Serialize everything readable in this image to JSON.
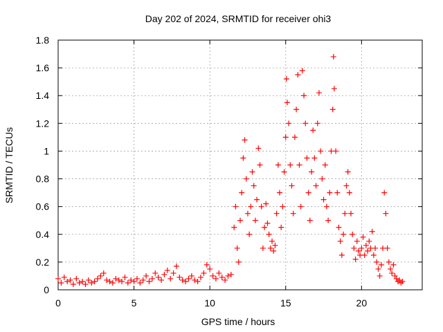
{
  "chart_data": {
    "type": "scatter",
    "title": "Day 202 of 2024, SRMTID for receiver ohi3",
    "xlabel": "GPS time / hours",
    "ylabel": "SRMTID / TECUs",
    "xlim": [
      0,
      24
    ],
    "ylim": [
      0,
      1.8
    ],
    "x_ticks": [
      0,
      5,
      10,
      15,
      20
    ],
    "x_tick_labels": [
      "0",
      "5",
      "10",
      "15",
      "20"
    ],
    "y_ticks": [
      0,
      0.2,
      0.4,
      0.6,
      0.8,
      1.0,
      1.2,
      1.4,
      1.6,
      1.8
    ],
    "y_tick_labels": [
      "0",
      "0.2",
      "0.4",
      "0.6",
      "0.8",
      "1",
      "1.2",
      "1.4",
      "1.6",
      "1.8"
    ],
    "grid": true,
    "marker": "+",
    "series": [
      {
        "name": "SRMTID",
        "color": "#ff0000",
        "points": [
          [
            0.0,
            0.08
          ],
          [
            0.2,
            0.05
          ],
          [
            0.4,
            0.09
          ],
          [
            0.6,
            0.06
          ],
          [
            0.8,
            0.07
          ],
          [
            1.0,
            0.04
          ],
          [
            1.2,
            0.08
          ],
          [
            1.4,
            0.05
          ],
          [
            1.6,
            0.06
          ],
          [
            1.8,
            0.04
          ],
          [
            2.0,
            0.07
          ],
          [
            2.2,
            0.05
          ],
          [
            2.4,
            0.06
          ],
          [
            2.6,
            0.08
          ],
          [
            2.8,
            0.1
          ],
          [
            3.0,
            0.12
          ],
          [
            3.2,
            0.07
          ],
          [
            3.4,
            0.06
          ],
          [
            3.6,
            0.05
          ],
          [
            3.8,
            0.08
          ],
          [
            4.0,
            0.07
          ],
          [
            4.2,
            0.06
          ],
          [
            4.4,
            0.09
          ],
          [
            4.6,
            0.05
          ],
          [
            4.8,
            0.07
          ],
          [
            5.0,
            0.06
          ],
          [
            5.2,
            0.08
          ],
          [
            5.4,
            0.05
          ],
          [
            5.6,
            0.07
          ],
          [
            5.8,
            0.1
          ],
          [
            6.0,
            0.06
          ],
          [
            6.2,
            0.08
          ],
          [
            6.4,
            0.12
          ],
          [
            6.6,
            0.09
          ],
          [
            6.8,
            0.07
          ],
          [
            7.0,
            0.11
          ],
          [
            7.2,
            0.14
          ],
          [
            7.4,
            0.08
          ],
          [
            7.6,
            0.12
          ],
          [
            7.8,
            0.17
          ],
          [
            8.0,
            0.09
          ],
          [
            8.2,
            0.07
          ],
          [
            8.4,
            0.06
          ],
          [
            8.6,
            0.08
          ],
          [
            8.8,
            0.1
          ],
          [
            9.0,
            0.07
          ],
          [
            9.2,
            0.06
          ],
          [
            9.4,
            0.09
          ],
          [
            9.6,
            0.12
          ],
          [
            9.8,
            0.18
          ],
          [
            10.0,
            0.15
          ],
          [
            10.2,
            0.1
          ],
          [
            10.4,
            0.08
          ],
          [
            10.6,
            0.12
          ],
          [
            10.8,
            0.09
          ],
          [
            11.0,
            0.07
          ],
          [
            11.2,
            0.1
          ],
          [
            11.4,
            0.11
          ],
          [
            11.6,
            0.45
          ],
          [
            11.7,
            0.6
          ],
          [
            11.8,
            0.3
          ],
          [
            11.9,
            0.2
          ],
          [
            12.0,
            0.5
          ],
          [
            12.1,
            0.7
          ],
          [
            12.2,
            0.95
          ],
          [
            12.3,
            1.08
          ],
          [
            12.4,
            0.8
          ],
          [
            12.5,
            0.55
          ],
          [
            12.6,
            0.4
          ],
          [
            12.7,
            0.6
          ],
          [
            12.8,
            0.85
          ],
          [
            12.9,
            0.75
          ],
          [
            13.0,
            0.5
          ],
          [
            13.1,
            0.65
          ],
          [
            13.2,
            1.02
          ],
          [
            13.3,
            0.9
          ],
          [
            13.4,
            0.6
          ],
          [
            13.5,
            0.3
          ],
          [
            13.6,
            0.45
          ],
          [
            13.7,
            0.62
          ],
          [
            13.8,
            0.48
          ],
          [
            13.9,
            0.4
          ],
          [
            14.0,
            0.3
          ],
          [
            14.1,
            0.35
          ],
          [
            14.2,
            0.28
          ],
          [
            14.3,
            0.32
          ],
          [
            14.4,
            0.55
          ],
          [
            14.5,
            0.9
          ],
          [
            14.6,
            0.7
          ],
          [
            14.7,
            0.45
          ],
          [
            14.8,
            0.6
          ],
          [
            14.9,
            0.85
          ],
          [
            15.0,
            1.1
          ],
          [
            15.05,
            1.52
          ],
          [
            15.1,
            1.35
          ],
          [
            15.2,
            1.2
          ],
          [
            15.3,
            0.9
          ],
          [
            15.4,
            0.75
          ],
          [
            15.5,
            0.55
          ],
          [
            15.6,
            1.1
          ],
          [
            15.7,
            1.3
          ],
          [
            15.8,
            1.55
          ],
          [
            15.9,
            0.9
          ],
          [
            16.0,
            0.6
          ],
          [
            16.1,
            1.58
          ],
          [
            16.2,
            1.4
          ],
          [
            16.3,
            1.2
          ],
          [
            16.4,
            0.95
          ],
          [
            16.5,
            0.7
          ],
          [
            16.6,
            0.5
          ],
          [
            16.7,
            0.85
          ],
          [
            16.8,
            1.15
          ],
          [
            16.9,
            0.95
          ],
          [
            17.0,
            0.75
          ],
          [
            17.1,
            1.2
          ],
          [
            17.2,
            1.42
          ],
          [
            17.3,
            1.0
          ],
          [
            17.4,
            0.8
          ],
          [
            17.5,
            0.65
          ],
          [
            17.6,
            0.9
          ],
          [
            17.7,
            0.6
          ],
          [
            17.8,
            0.5
          ],
          [
            17.9,
            0.7
          ],
          [
            18.0,
            1.0
          ],
          [
            18.1,
            1.3
          ],
          [
            18.15,
            1.68
          ],
          [
            18.2,
            1.45
          ],
          [
            18.3,
            1.0
          ],
          [
            18.4,
            0.7
          ],
          [
            18.5,
            0.45
          ],
          [
            18.6,
            0.35
          ],
          [
            18.7,
            0.25
          ],
          [
            18.8,
            0.4
          ],
          [
            18.9,
            0.55
          ],
          [
            19.0,
            0.75
          ],
          [
            19.1,
            0.85
          ],
          [
            19.2,
            0.7
          ],
          [
            19.3,
            0.55
          ],
          [
            19.4,
            0.4
          ],
          [
            19.5,
            0.3
          ],
          [
            19.6,
            0.22
          ],
          [
            19.7,
            0.35
          ],
          [
            19.8,
            0.28
          ],
          [
            19.9,
            0.25
          ],
          [
            20.0,
            0.3
          ],
          [
            20.1,
            0.38
          ],
          [
            20.2,
            0.25
          ],
          [
            20.3,
            0.32
          ],
          [
            20.4,
            0.28
          ],
          [
            20.5,
            0.35
          ],
          [
            20.6,
            0.3
          ],
          [
            20.7,
            0.42
          ],
          [
            20.8,
            0.25
          ],
          [
            20.9,
            0.3
          ],
          [
            21.0,
            0.2
          ],
          [
            21.1,
            0.15
          ],
          [
            21.2,
            0.1
          ],
          [
            21.3,
            0.18
          ],
          [
            21.4,
            0.3
          ],
          [
            21.5,
            0.7
          ],
          [
            21.6,
            0.55
          ],
          [
            21.7,
            0.3
          ],
          [
            21.8,
            0.2
          ],
          [
            21.9,
            0.15
          ],
          [
            22.0,
            0.12
          ],
          [
            22.1,
            0.18
          ],
          [
            22.2,
            0.1
          ],
          [
            22.3,
            0.08
          ],
          [
            22.4,
            0.06
          ],
          [
            22.5,
            0.07
          ],
          [
            22.6,
            0.05
          ],
          [
            22.7,
            0.06
          ]
        ]
      }
    ]
  }
}
